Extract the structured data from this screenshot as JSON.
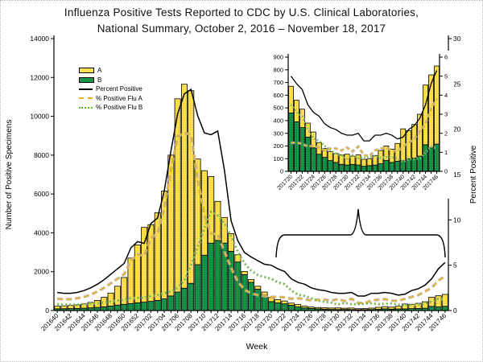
{
  "title": {
    "line1": "Influenza Positive Tests Reported to CDC by U.S. Clinical Laboratories,",
    "line2": "National Summary, October 2, 2016 – November 18, 2017"
  },
  "axes": {
    "xlabel": "Week",
    "ylabel_left": "Number of Positive Specimens",
    "ylabel_right": "Percent Positive"
  },
  "legend": {
    "items": [
      {
        "label": "A",
        "swatch": "bar",
        "color": "#ffe14d"
      },
      {
        "label": "B",
        "swatch": "bar",
        "color": "#189648"
      },
      {
        "label": "Percent Positive",
        "swatch": "solid-line",
        "color": "#000000"
      },
      {
        "label": "% Positive Flu A",
        "swatch": "dashed-line",
        "color": "#edb120"
      },
      {
        "label": "% Positive Flu B",
        "swatch": "dotted-line",
        "color": "#52c41e"
      }
    ]
  },
  "colors": {
    "flu_a_bar": "#ffe14d",
    "flu_a_bar_dot": "#c8a800",
    "flu_b_bar": "#189648",
    "flu_b_bar_dot": "#0c5b2b",
    "percent_positive_line": "#000000",
    "flu_a_percent_line": "#edb120",
    "flu_b_percent_line": "#52c41e",
    "line_halo": "#b3b3b3"
  },
  "chart_data": {
    "type": "bar",
    "title": "Influenza Positive Tests Reported to CDC by U.S. Clinical Laboratories, National Summary, October 2, 2016 – November 18, 2017",
    "xlabel": "Week",
    "ylabel_left": "Number of Positive Specimens",
    "ylabel_right": "Percent Positive",
    "ylim_left": [
      0,
      14000
    ],
    "ylim_right": [
      0,
      30
    ],
    "yticks_left": [
      0,
      2000,
      4000,
      6000,
      8000,
      10000,
      12000,
      14000
    ],
    "yticks_right": [
      0,
      5,
      10,
      15,
      20,
      25,
      30
    ],
    "x_tick_label_step": 2,
    "grid": false,
    "legend_position": "upper-left-inside",
    "categories": [
      "201640",
      "201641",
      "201642",
      "201643",
      "201644",
      "201645",
      "201646",
      "201647",
      "201648",
      "201649",
      "201650",
      "201651",
      "201652",
      "201701",
      "201702",
      "201703",
      "201704",
      "201705",
      "201706",
      "201707",
      "201708",
      "201709",
      "201710",
      "201711",
      "201712",
      "201713",
      "201714",
      "201715",
      "201716",
      "201717",
      "201718",
      "201719",
      "201720",
      "201721",
      "201722",
      "201723",
      "201724",
      "201725",
      "201726",
      "201727",
      "201728",
      "201729",
      "201730",
      "201731",
      "201732",
      "201733",
      "201734",
      "201735",
      "201736",
      "201737",
      "201738",
      "201739",
      "201740",
      "201741",
      "201742",
      "201743",
      "201744",
      "201745",
      "201746"
    ],
    "series": [
      {
        "name": "A",
        "type": "bar",
        "stack": "top",
        "axis": "left",
        "values": [
          130,
          145,
          160,
          180,
          220,
          280,
          360,
          490,
          670,
          970,
          1380,
          2340,
          2980,
          3850,
          3950,
          4520,
          5550,
          7250,
          9950,
          10500,
          9920,
          5440,
          4350,
          3430,
          2010,
          1320,
          910,
          370,
          160,
          150,
          150,
          150,
          210,
          170,
          145,
          110,
          125,
          90,
          70,
          70,
          70,
          75,
          85,
          65,
          80,
          55,
          55,
          75,
          105,
          115,
          105,
          140,
          250,
          220,
          265,
          330,
          470,
          575,
          615
        ]
      },
      {
        "name": "B",
        "type": "bar",
        "stack": "bottom",
        "axis": "left",
        "values": [
          90,
          95,
          100,
          110,
          120,
          140,
          160,
          190,
          230,
          280,
          320,
          360,
          400,
          430,
          470,
          520,
          600,
          750,
          950,
          1150,
          1400,
          2360,
          2850,
          3470,
          3610,
          3470,
          3050,
          2500,
          1850,
          1450,
          1100,
          800,
          460,
          390,
          345,
          270,
          185,
          135,
          110,
          85,
          70,
          55,
          50,
          55,
          50,
          40,
          45,
          50,
          60,
          85,
          70,
          80,
          85,
          100,
          105,
          120,
          210,
          185,
          215
        ]
      },
      {
        "name": "Percent Positive",
        "type": "line",
        "style": "solid",
        "axis": "right",
        "values": [
          2.0,
          1.9,
          1.9,
          2.0,
          2.2,
          2.5,
          2.9,
          3.4,
          4.0,
          4.6,
          5.2,
          6.9,
          7.6,
          7.4,
          9.6,
          10.2,
          13.2,
          17.6,
          21.7,
          23.9,
          24.4,
          21.5,
          19.6,
          19.4,
          19.8,
          15.5,
          9.9,
          7.7,
          6.4,
          5.9,
          5.5,
          5.1,
          5.0,
          4.6,
          4.3,
          3.5,
          3.1,
          2.9,
          2.5,
          2.3,
          2.2,
          2.0,
          1.9,
          1.9,
          2.0,
          1.6,
          1.6,
          1.9,
          1.9,
          2.0,
          1.9,
          1.7,
          1.8,
          2.2,
          2.4,
          2.8,
          3.5,
          4.6,
          5.3
        ]
      },
      {
        "name": "% Positive Flu A",
        "type": "line",
        "style": "dashed",
        "axis": "right",
        "values": [
          1.3,
          1.25,
          1.25,
          1.35,
          1.5,
          1.75,
          2.1,
          2.5,
          3.0,
          3.5,
          4.0,
          5.5,
          6.2,
          6.0,
          8.0,
          8.5,
          11.3,
          15.5,
          19.2,
          19.6,
          19.4,
          14.5,
          10.5,
          8.5,
          8.4,
          6.5,
          4.7,
          3.2,
          2.3,
          1.9,
          1.7,
          1.6,
          1.5,
          1.5,
          1.45,
          1.3,
          1.35,
          1.25,
          1.1,
          1.2,
          1.2,
          1.1,
          1.25,
          1.05,
          1.3,
          0.85,
          0.8,
          1.1,
          1.2,
          1.25,
          1.1,
          1.05,
          1.3,
          1.5,
          1.7,
          2.1,
          2.5,
          3.3,
          3.8
        ]
      },
      {
        "name": "% Positive Flu B",
        "type": "line",
        "style": "dotted",
        "axis": "right",
        "values": [
          0.7,
          0.65,
          0.65,
          0.65,
          0.7,
          0.75,
          0.8,
          0.9,
          1.0,
          1.1,
          1.2,
          1.35,
          1.4,
          1.4,
          1.6,
          1.7,
          1.9,
          2.1,
          2.5,
          3.3,
          5.0,
          7.0,
          9.1,
          10.9,
          10.5,
          9.6,
          8.2,
          6.5,
          5.2,
          4.4,
          3.9,
          3.7,
          3.5,
          3.1,
          2.9,
          2.2,
          1.75,
          1.6,
          1.35,
          1.1,
          0.95,
          0.85,
          0.65,
          0.85,
          0.7,
          0.7,
          0.75,
          0.8,
          0.7,
          0.75,
          0.75,
          0.65,
          0.5,
          0.65,
          0.65,
          0.7,
          1.0,
          1.3,
          1.2
        ]
      }
    ],
    "inset": {
      "description": "zoomed view of weeks 201720-201746",
      "week_start": "201720",
      "week_end": "201746",
      "ylim_left": [
        0,
        900
      ],
      "ylim_right": [
        0,
        6
      ],
      "yticks_left": [
        0,
        100,
        200,
        300,
        400,
        500,
        600,
        700,
        800,
        900
      ],
      "yticks_right": [
        0,
        1,
        2,
        3,
        4,
        5,
        6
      ],
      "x_tick_label_step": 2
    }
  }
}
